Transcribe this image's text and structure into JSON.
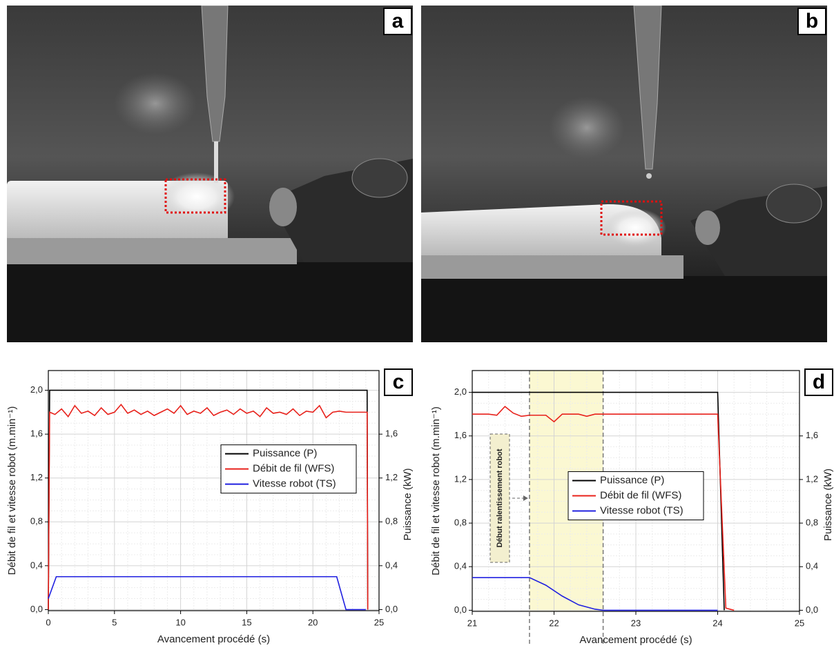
{
  "photos": [
    {
      "panel_label": "a"
    },
    {
      "panel_label": "b"
    }
  ],
  "chart_data": [
    {
      "type": "line",
      "panel_label": "c",
      "x_label": "Avancement procédé (s)",
      "y_label": "Débit de fil et vitesse robot (m.min⁻¹)",
      "y2_label": "Puissance (kW)",
      "xlim": [
        0,
        25
      ],
      "xticks": [
        0,
        5,
        10,
        15,
        20,
        25
      ],
      "ylim": [
        -0.01,
        2.18
      ],
      "yticks": [
        {
          "value": 0,
          "label": "0,0"
        },
        {
          "value": 0.4,
          "label": "0,4"
        },
        {
          "value": 0.8,
          "label": "0,8"
        },
        {
          "value": 1.2,
          "label": "1,2"
        },
        {
          "value": 1.6,
          "label": "1,6"
        },
        {
          "value": 2,
          "label": "2,0"
        }
      ],
      "y2lim": [
        -0.01,
        2.18
      ],
      "y2ticks": [
        {
          "value": 0,
          "label": "0,0"
        },
        {
          "value": 0.4,
          "label": "0,4"
        },
        {
          "value": 0.8,
          "label": "0,8"
        },
        {
          "value": 1.2,
          "label": "1,2"
        },
        {
          "value": 1.6,
          "label": "1,6"
        }
      ],
      "grid": true,
      "legend": "center right",
      "series": [
        {
          "name": "Puissance (P)",
          "color": "#000000",
          "axis": "y2",
          "x": [
            0,
            0.1,
            24.1,
            24.15
          ],
          "values": [
            0,
            2,
            2,
            0
          ]
        },
        {
          "name": "Débit de fil (WFS)",
          "color": "#e8201a",
          "x": [
            0,
            0.1,
            0.5,
            1,
            1.5,
            2,
            2.5,
            3,
            3.5,
            4,
            4.5,
            5,
            5.5,
            6,
            6.5,
            7,
            7.5,
            8,
            8.5,
            9,
            9.5,
            10,
            10.5,
            11,
            11.5,
            12,
            12.5,
            13,
            13.5,
            14,
            14.5,
            15,
            15.5,
            16,
            16.5,
            17,
            17.5,
            18,
            18.5,
            19,
            19.5,
            20,
            20.5,
            21,
            21.5,
            22,
            22.5,
            24.1,
            24.15
          ],
          "values": [
            0,
            1.8,
            1.78,
            1.83,
            1.76,
            1.86,
            1.79,
            1.81,
            1.77,
            1.84,
            1.78,
            1.8,
            1.87,
            1.79,
            1.82,
            1.78,
            1.81,
            1.77,
            1.8,
            1.83,
            1.79,
            1.86,
            1.78,
            1.81,
            1.79,
            1.84,
            1.77,
            1.8,
            1.82,
            1.78,
            1.83,
            1.79,
            1.81,
            1.76,
            1.84,
            1.79,
            1.8,
            1.78,
            1.83,
            1.77,
            1.81,
            1.8,
            1.86,
            1.75,
            1.8,
            1.81,
            1.8,
            1.8,
            0
          ]
        },
        {
          "name": "Vitesse robot (TS)",
          "color": "#1f1fe0",
          "x": [
            0,
            0.6,
            21.8,
            22.5,
            24
          ],
          "values": [
            0.1,
            0.3,
            0.3,
            0,
            0
          ]
        }
      ]
    },
    {
      "type": "line",
      "panel_label": "d",
      "x_label": "Avancement procédé (s)",
      "y_label": "Débit de fil et vitesse robot (m.min⁻¹)",
      "y2_label": "Puissance (kW)",
      "xlim": [
        21,
        25
      ],
      "xticks": [
        21,
        22,
        23,
        24,
        25
      ],
      "ylim": [
        -0.01,
        2.2
      ],
      "yticks": [
        {
          "value": 0,
          "label": "0,0"
        },
        {
          "value": 0.4,
          "label": "0,4"
        },
        {
          "value": 0.8,
          "label": "0,8"
        },
        {
          "value": 1.2,
          "label": "1,2"
        },
        {
          "value": 1.6,
          "label": "1,6"
        },
        {
          "value": 2,
          "label": "2,0"
        }
      ],
      "y2lim": [
        -0.01,
        2.2
      ],
      "y2ticks": [
        {
          "value": 0,
          "label": "0,0"
        },
        {
          "value": 0.4,
          "label": "0,4"
        },
        {
          "value": 0.8,
          "label": "0,8"
        },
        {
          "value": 1.2,
          "label": "1,2"
        },
        {
          "value": 1.6,
          "label": "1,6"
        }
      ],
      "grid": true,
      "legend": "center",
      "highlight_x": [
        21.7,
        22.6
      ],
      "annotation": "Début ralentissement robot",
      "series": [
        {
          "name": "Puissance (P)",
          "color": "#000000",
          "axis": "y2",
          "x": [
            21,
            24,
            24.08
          ],
          "values": [
            2,
            2,
            0
          ]
        },
        {
          "name": "Débit de fil (WFS)",
          "color": "#e8201a",
          "x": [
            21,
            21.2,
            21.3,
            21.4,
            21.5,
            21.6,
            21.7,
            21.8,
            21.9,
            22,
            22.1,
            22.2,
            22.3,
            22.4,
            22.5,
            23,
            24,
            24.1,
            24.2
          ],
          "values": [
            1.8,
            1.8,
            1.79,
            1.87,
            1.81,
            1.78,
            1.79,
            1.79,
            1.79,
            1.73,
            1.8,
            1.8,
            1.8,
            1.78,
            1.8,
            1.8,
            1.8,
            0.02,
            0
          ]
        },
        {
          "name": "Vitesse robot (TS)",
          "color": "#1f1fe0",
          "x": [
            21,
            21.7,
            21.9,
            22.1,
            22.3,
            22.5,
            22.6,
            24
          ],
          "values": [
            0.3,
            0.3,
            0.23,
            0.13,
            0.05,
            0.01,
            0,
            0
          ]
        }
      ]
    }
  ]
}
